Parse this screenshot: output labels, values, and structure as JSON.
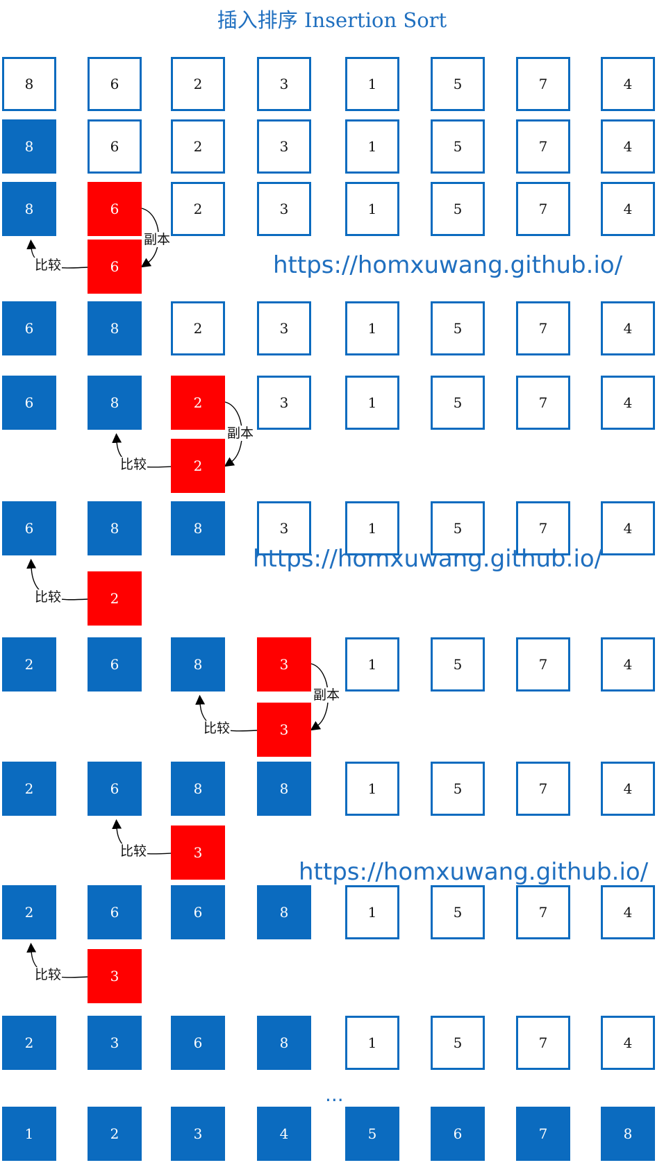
{
  "title": "插入排序 Insertion Sort",
  "colors": {
    "white_box": "#ffffff",
    "sorted_box": "#0b6bbf",
    "current_box": "#ff0000",
    "accent": "#1f6fbf"
  },
  "labels": {
    "compare": "比较",
    "copy": "副本"
  },
  "watermark": "https://homxuwang.github.io/",
  "ellipsis": "...",
  "rows": [
    {
      "cells": [
        [
          "8",
          "white"
        ],
        [
          "6",
          "white"
        ],
        [
          "2",
          "white"
        ],
        [
          "3",
          "white"
        ],
        [
          "1",
          "white"
        ],
        [
          "5",
          "white"
        ],
        [
          "7",
          "white"
        ],
        [
          "4",
          "white"
        ]
      ]
    },
    {
      "cells": [
        [
          "8",
          "blue"
        ],
        [
          "6",
          "white"
        ],
        [
          "2",
          "white"
        ],
        [
          "3",
          "white"
        ],
        [
          "1",
          "white"
        ],
        [
          "5",
          "white"
        ],
        [
          "7",
          "white"
        ],
        [
          "4",
          "white"
        ]
      ]
    },
    {
      "cells": [
        [
          "8",
          "blue"
        ],
        [
          "6",
          "red"
        ],
        [
          "2",
          "white"
        ],
        [
          "3",
          "white"
        ],
        [
          "1",
          "white"
        ],
        [
          "5",
          "white"
        ],
        [
          "7",
          "white"
        ],
        [
          "4",
          "white"
        ]
      ],
      "temp": "6",
      "copy": true,
      "compare": true
    },
    {
      "cells": [
        [
          "6",
          "blue"
        ],
        [
          "8",
          "blue"
        ],
        [
          "2",
          "white"
        ],
        [
          "3",
          "white"
        ],
        [
          "1",
          "white"
        ],
        [
          "5",
          "white"
        ],
        [
          "7",
          "white"
        ],
        [
          "4",
          "white"
        ]
      ]
    },
    {
      "cells": [
        [
          "6",
          "blue"
        ],
        [
          "8",
          "blue"
        ],
        [
          "2",
          "red"
        ],
        [
          "3",
          "white"
        ],
        [
          "1",
          "white"
        ],
        [
          "5",
          "white"
        ],
        [
          "7",
          "white"
        ],
        [
          "4",
          "white"
        ]
      ],
      "temp": "2",
      "copy": true,
      "compare": true
    },
    {
      "cells": [
        [
          "6",
          "blue"
        ],
        [
          "8",
          "blue"
        ],
        [
          "8",
          "blue"
        ],
        [
          "3",
          "white"
        ],
        [
          "1",
          "white"
        ],
        [
          "5",
          "white"
        ],
        [
          "7",
          "white"
        ],
        [
          "4",
          "white"
        ]
      ],
      "temp": "2",
      "copy": false,
      "compare": true
    },
    {
      "cells": [
        [
          "2",
          "blue"
        ],
        [
          "6",
          "blue"
        ],
        [
          "8",
          "blue"
        ],
        [
          "3",
          "red"
        ],
        [
          "1",
          "white"
        ],
        [
          "5",
          "white"
        ],
        [
          "7",
          "white"
        ],
        [
          "4",
          "white"
        ]
      ],
      "temp": "3",
      "copy": true,
      "compare": true
    },
    {
      "cells": [
        [
          "2",
          "blue"
        ],
        [
          "6",
          "blue"
        ],
        [
          "8",
          "blue"
        ],
        [
          "8",
          "blue"
        ],
        [
          "1",
          "white"
        ],
        [
          "5",
          "white"
        ],
        [
          "7",
          "white"
        ],
        [
          "4",
          "white"
        ]
      ],
      "temp": "3",
      "copy": false,
      "compare": true
    },
    {
      "cells": [
        [
          "2",
          "blue"
        ],
        [
          "6",
          "blue"
        ],
        [
          "6",
          "blue"
        ],
        [
          "8",
          "blue"
        ],
        [
          "1",
          "white"
        ],
        [
          "5",
          "white"
        ],
        [
          "7",
          "white"
        ],
        [
          "4",
          "white"
        ]
      ],
      "temp": "3",
      "copy": false,
      "compare": true
    },
    {
      "cells": [
        [
          "2",
          "blue"
        ],
        [
          "3",
          "blue"
        ],
        [
          "6",
          "blue"
        ],
        [
          "8",
          "blue"
        ],
        [
          "1",
          "white"
        ],
        [
          "5",
          "white"
        ],
        [
          "7",
          "white"
        ],
        [
          "4",
          "white"
        ]
      ]
    },
    {
      "cells": [
        [
          "1",
          "blue"
        ],
        [
          "2",
          "blue"
        ],
        [
          "3",
          "blue"
        ],
        [
          "4",
          "blue"
        ],
        [
          "5",
          "blue"
        ],
        [
          "6",
          "blue"
        ],
        [
          "7",
          "blue"
        ],
        [
          "8",
          "blue"
        ]
      ]
    }
  ]
}
